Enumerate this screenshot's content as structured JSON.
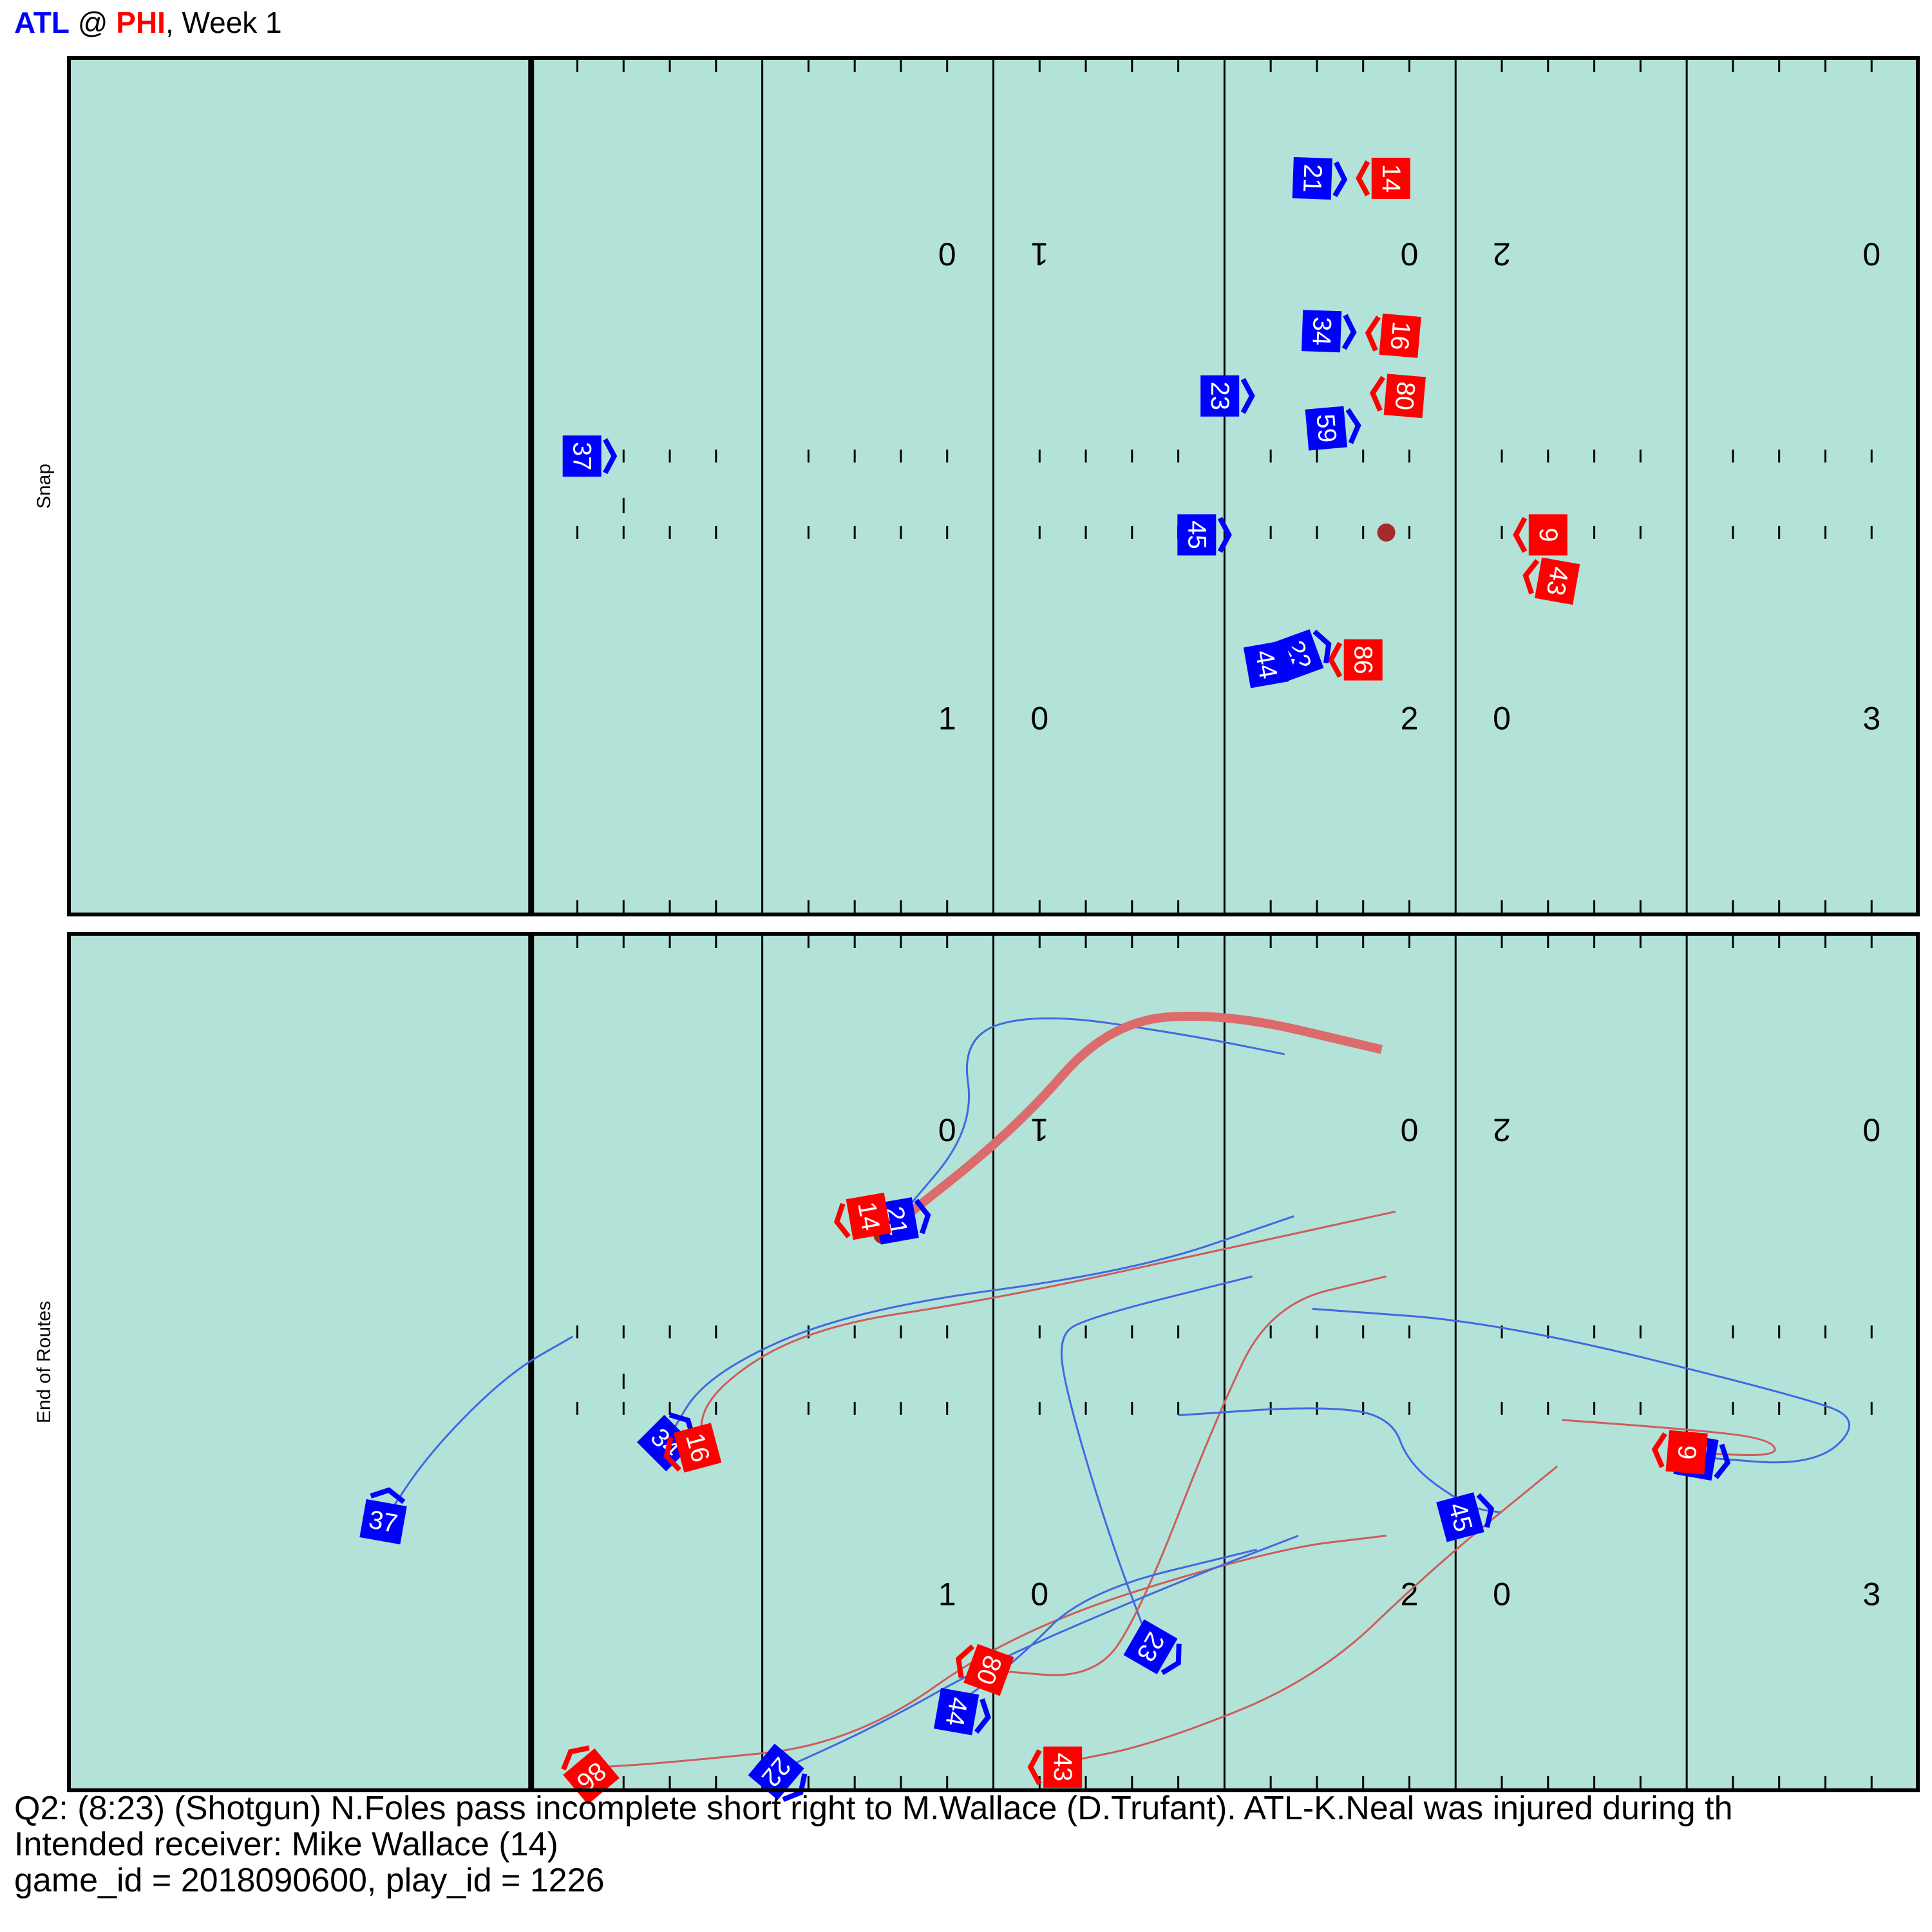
{
  "header": {
    "away": "ATL",
    "at": " @ ",
    "home": "PHI",
    "week": ", Week 1"
  },
  "colors": {
    "away": "#0000ff",
    "home": "#ff0000",
    "field": "#b3e2d8",
    "ball": "#a52a2a",
    "away_path": "#4169e1",
    "home_path": "#cd5c5c",
    "pass_path": "#dc6b6b"
  },
  "caption": {
    "line1": "Q2: (8:23) (Shotgun) N.Foles pass incomplete short right to M.Wallace (D.Trufant). ATL-K.Neal was injured during th",
    "line2": "Intended receiver: Mike Wallace (14)",
    "line3": "game_id = 2018090600, play_id = 1226"
  },
  "chart_data": {
    "type": "scatter",
    "xlim": [
      0,
      40
    ],
    "ylim": [
      0,
      18.5
    ],
    "scrimmage_line_x": 10,
    "yard_lines_x": [
      15,
      20,
      25,
      30,
      35
    ],
    "yard_numbers": [
      {
        "x": 19,
        "text": "1",
        "flip": "0"
      },
      {
        "x": 21,
        "text": "0",
        "flip": "1"
      },
      {
        "x": 29,
        "text": "2",
        "flip": "0"
      },
      {
        "x": 31,
        "text": "0",
        "flip": "2"
      },
      {
        "x": 39,
        "text": "3",
        "flip": "0"
      }
    ],
    "panels": [
      {
        "label": "Snap",
        "ball": {
          "x": 28.5,
          "y": 8.25
        },
        "players": [
          {
            "team": "away",
            "num": "21",
            "x": 26.9,
            "y": 15.9,
            "rot": 92
          },
          {
            "team": "home",
            "num": "14",
            "x": 28.6,
            "y": 15.9,
            "rot": 90
          },
          {
            "team": "away",
            "num": "34",
            "x": 27.1,
            "y": 12.6,
            "rot": 92
          },
          {
            "team": "home",
            "num": "16",
            "x": 28.8,
            "y": 12.5,
            "rot": 95
          },
          {
            "team": "away",
            "num": "23",
            "x": 24.9,
            "y": 11.2,
            "rot": 90
          },
          {
            "team": "home",
            "num": "80",
            "x": 28.9,
            "y": 11.2,
            "rot": 95
          },
          {
            "team": "away",
            "num": "59",
            "x": 27.2,
            "y": 10.5,
            "rot": 85
          },
          {
            "team": "away",
            "num": "37",
            "x": 11.1,
            "y": 9.9,
            "rot": 90
          },
          {
            "team": "away",
            "num": "45",
            "x": 24.4,
            "y": 8.2,
            "rot": 90
          },
          {
            "team": "home",
            "num": "9",
            "x": 32.0,
            "y": 8.2,
            "rot": 90
          },
          {
            "team": "home",
            "num": "43",
            "x": 32.2,
            "y": 7.2,
            "rot": 100
          },
          {
            "team": "home",
            "num": "86",
            "x": 28.0,
            "y": 5.5,
            "rot": 90
          },
          {
            "team": "away",
            "num": "22",
            "x": 26.6,
            "y": 5.6,
            "rot": 70
          },
          {
            "team": "away",
            "num": "44",
            "x": 25.9,
            "y": 5.4,
            "rot": 80
          }
        ]
      },
      {
        "label": "End of Routes",
        "ball": {
          "x": 17.6,
          "y": 12.0
        },
        "pass": [
          [
            28.4,
            16.0
          ],
          [
            25.0,
            16.8
          ],
          [
            22.5,
            16.6
          ],
          [
            20.5,
            14.3
          ],
          [
            17.6,
            12.0
          ]
        ],
        "players": [
          {
            "team": "away",
            "num": "21",
            "x": 17.9,
            "y": 12.3,
            "rot": 80,
            "path": [
              [
                26.3,
                15.9
              ],
              [
                24.3,
                16.3
              ],
              [
                21.0,
                16.8
              ],
              [
                19.3,
                16.3
              ],
              [
                19.6,
                14.3
              ],
              [
                17.9,
                12.3
              ]
            ]
          },
          {
            "team": "home",
            "num": "14",
            "x": 17.3,
            "y": 12.4,
            "rot": 80,
            "path": []
          },
          {
            "team": "away",
            "num": "34",
            "x": 12.9,
            "y": 7.5,
            "rot": 45,
            "path": [
              [
                26.5,
                12.4
              ],
              [
                23.0,
                11.2
              ],
              [
                17.0,
                10.4
              ],
              [
                13.8,
                9.0
              ],
              [
                12.9,
                7.5
              ]
            ]
          },
          {
            "team": "home",
            "num": "16",
            "x": 13.6,
            "y": 7.4,
            "rot": 75,
            "path": [
              [
                28.7,
                12.5
              ],
              [
                25.5,
                11.8
              ],
              [
                20.0,
                10.6
              ],
              [
                16.0,
                10.0
              ],
              [
                13.8,
                8.6
              ],
              [
                13.6,
                7.4
              ]
            ]
          },
          {
            "team": "away",
            "num": "23",
            "x": 23.4,
            "y": 3.1,
            "rot": 120,
            "path": [
              [
                25.6,
                11.1
              ],
              [
                22.0,
                10.2
              ],
              [
                21.4,
                9.8
              ],
              [
                21.6,
                8.5
              ],
              [
                22.5,
                5.5
              ],
              [
                23.4,
                3.1
              ]
            ]
          },
          {
            "team": "home",
            "num": "80",
            "x": 19.9,
            "y": 2.6,
            "rot": 110,
            "path": [
              [
                28.5,
                11.1
              ],
              [
                26.0,
                10.5
              ],
              [
                24.8,
                8.0
              ],
              [
                23.2,
                3.9
              ],
              [
                22.2,
                2.4
              ],
              [
                19.9,
                2.6
              ]
            ]
          },
          {
            "team": "away",
            "num": "59",
            "x": 35.2,
            "y": 7.2,
            "rot": 100,
            "path": [
              [
                26.9,
                10.4
              ],
              [
                31.0,
                10.1
              ],
              [
                37.5,
                8.5
              ],
              [
                38.8,
                8.0
              ],
              [
                37.8,
                7.0
              ],
              [
                35.2,
                7.2
              ]
            ]
          },
          {
            "team": "home",
            "num": "9",
            "x": 35.0,
            "y": 7.3,
            "rot": 95,
            "path": [
              [
                32.3,
                8.0
              ],
              [
                35.0,
                7.8
              ],
              [
                36.8,
                7.6
              ],
              [
                37.0,
                7.2
              ],
              [
                35.0,
                7.3
              ]
            ]
          },
          {
            "team": "away",
            "num": "37",
            "x": 6.8,
            "y": 5.8,
            "rot": 10,
            "path": [
              [
                10.9,
                9.8
              ],
              [
                9.5,
                9.0
              ],
              [
                7.8,
                7.3
              ],
              [
                6.8,
                5.8
              ]
            ]
          },
          {
            "team": "away",
            "num": "45",
            "x": 30.1,
            "y": 5.9,
            "rot": 75,
            "path": [
              [
                24.0,
                8.1
              ],
              [
                27.0,
                8.3
              ],
              [
                28.6,
                8.1
              ],
              [
                29.0,
                7.0
              ],
              [
                30.3,
                6.1
              ],
              [
                31.0,
                6.0
              ]
            ]
          },
          {
            "team": "home",
            "num": "43",
            "x": 21.5,
            "y": 0.5,
            "rot": 90,
            "path": [
              [
                32.2,
                7.0
              ],
              [
                29.5,
                4.8
              ],
              [
                27.0,
                2.4
              ],
              [
                23.5,
                1.0
              ],
              [
                21.5,
                0.6
              ]
            ]
          },
          {
            "team": "home",
            "num": "86",
            "x": 11.3,
            "y": 0.3,
            "rot": 140,
            "path": [
              [
                28.5,
                5.5
              ],
              [
                26.0,
                5.2
              ],
              [
                20.5,
                3.5
              ],
              [
                17.0,
                1.0
              ],
              [
                13.0,
                0.6
              ],
              [
                11.5,
                0.5
              ]
            ]
          },
          {
            "team": "away",
            "num": "22",
            "x": 15.3,
            "y": 0.4,
            "rot": 130,
            "path": [
              [
                26.6,
                5.5
              ],
              [
                24.0,
                4.5
              ],
              [
                20.0,
                2.8
              ],
              [
                17.5,
                1.4
              ],
              [
                15.3,
                0.4
              ]
            ]
          },
          {
            "team": "away",
            "num": "44",
            "x": 19.2,
            "y": 1.7,
            "rot": 100,
            "path": [
              [
                25.7,
                5.2
              ],
              [
                22.0,
                4.3
              ],
              [
                20.5,
                2.8
              ],
              [
                19.4,
                2.0
              ]
            ]
          }
        ]
      }
    ]
  }
}
